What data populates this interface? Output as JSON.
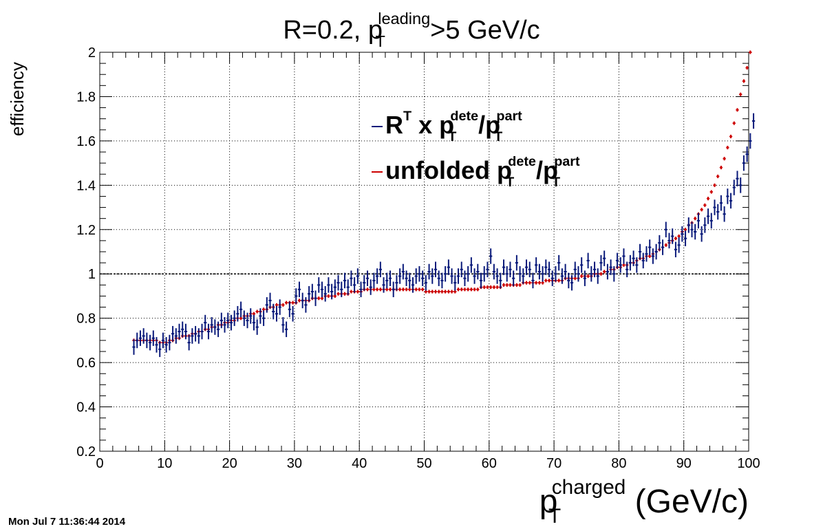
{
  "title": {
    "prefix": "R=0.2, p",
    "sub": "T",
    "sup": "leading",
    "suffix": ">5 GeV/c"
  },
  "legend": [
    {
      "base": "R",
      "sup1": "T",
      "mid": " x p",
      "sup2": "dete",
      "sub2": "T",
      "slash": "/p",
      "sup3": "part",
      "sub3": "T",
      "color": "#0a1a7a"
    },
    {
      "base": "unfolded p",
      "sup2": "dete",
      "sub2": "T",
      "slash": "/p",
      "sup3": "part",
      "sub3": "T",
      "color": "#cc0000"
    }
  ],
  "xlabel": {
    "base": "p",
    "sup": "charged",
    "sub": "T",
    "suffix": " (GeV/c)"
  },
  "ylabel": "efficiency",
  "timestamp": "Mon Jul  7 11:36:44 2014",
  "colors": {
    "series1": "#0a1a7a",
    "series2": "#cc0000",
    "grid": "#000000"
  },
  "chart_data": {
    "type": "scatter",
    "xlim": [
      0,
      100
    ],
    "ylim": [
      0.2,
      2
    ],
    "xticks": [
      0,
      10,
      20,
      30,
      40,
      50,
      60,
      70,
      80,
      90,
      100
    ],
    "yticks": [
      0.2,
      0.4,
      0.6,
      0.8,
      1,
      1.2,
      1.4,
      1.6,
      1.8,
      2
    ],
    "ytick_labels": [
      "0.2",
      "0.4",
      "0.6",
      "0.8",
      "1",
      "1.2",
      "1.4",
      "1.6",
      "1.8",
      "2"
    ],
    "grid": true,
    "reference_line_y": 1,
    "series": [
      {
        "name_key": "R^T x pT dete/pT part",
        "x_start": 5.25,
        "x_step": 0.5,
        "y": [
          0.67,
          0.7,
          0.71,
          0.72,
          0.7,
          0.69,
          0.71,
          0.68,
          0.66,
          0.7,
          0.68,
          0.69,
          0.73,
          0.72,
          0.74,
          0.75,
          0.74,
          0.69,
          0.72,
          0.73,
          0.72,
          0.74,
          0.78,
          0.74,
          0.77,
          0.76,
          0.75,
          0.79,
          0.77,
          0.79,
          0.78,
          0.8,
          0.82,
          0.84,
          0.8,
          0.79,
          0.81,
          0.78,
          0.76,
          0.81,
          0.8,
          0.86,
          0.88,
          0.83,
          0.82,
          0.85,
          0.77,
          0.75,
          0.84,
          0.82,
          0.9,
          0.93,
          0.88,
          0.86,
          0.91,
          0.92,
          0.89,
          0.95,
          0.93,
          0.91,
          0.95,
          0.92,
          0.94,
          0.96,
          0.93,
          0.97,
          0.94,
          0.98,
          0.95,
          0.99,
          0.93,
          0.96,
          0.98,
          0.94,
          0.97,
          0.99,
          1.02,
          0.95,
          0.97,
          0.98,
          0.93,
          0.96,
          0.99,
          1.01,
          0.98,
          0.97,
          0.95,
          0.99,
          1.0,
          0.98,
          0.96,
          1.01,
          0.99,
          1.02,
          0.98,
          0.97,
          1.0,
          1.03,
          0.99,
          0.96,
          0.99,
          1.02,
          0.98,
          1.0,
          1.04,
          0.99,
          1.01,
          0.97,
          1.0,
          1.02,
          1.08,
          1.01,
          0.99,
          0.97,
          1.03,
          1.0,
          1.02,
          0.98,
          1.05,
          1.0,
          0.99,
          1.03,
          1.02,
          0.97,
          1.04,
          1.01,
          1.0,
          1.03,
          1.02,
          0.98,
          1.0,
          1.05,
          0.99,
          1.01,
          0.97,
          0.96,
          1.02,
          1.0,
          1.04,
          0.98,
          1.06,
          1.0,
          1.02,
          0.99,
          1.05,
          1.07,
          1.01,
          1.03,
          1.0,
          1.06,
          1.04,
          1.08,
          1.02,
          1.05,
          1.07,
          1.04,
          1.1,
          1.06,
          1.09,
          1.12,
          1.08,
          1.1,
          1.14,
          1.12,
          1.2,
          1.15,
          1.17,
          1.11,
          1.13,
          1.18,
          1.16,
          1.22,
          1.2,
          1.19,
          1.24,
          1.18,
          1.22,
          1.26,
          1.24,
          1.3,
          1.28,
          1.32,
          1.27,
          1.35,
          1.33,
          1.39,
          1.43,
          1.4,
          1.5,
          1.54,
          1.6,
          1.69
        ],
        "err": 0.035
      },
      {
        "name_key": "unfolded pT dete/pT part",
        "x_start": 5.25,
        "x_step": 0.5,
        "y": [
          0.7,
          0.7,
          0.7,
          0.7,
          0.7,
          0.7,
          0.7,
          0.7,
          0.69,
          0.69,
          0.69,
          0.7,
          0.7,
          0.71,
          0.71,
          0.72,
          0.72,
          0.72,
          0.73,
          0.73,
          0.74,
          0.74,
          0.75,
          0.75,
          0.76,
          0.76,
          0.77,
          0.77,
          0.78,
          0.78,
          0.79,
          0.79,
          0.8,
          0.8,
          0.81,
          0.81,
          0.82,
          0.82,
          0.83,
          0.83,
          0.84,
          0.84,
          0.85,
          0.85,
          0.86,
          0.86,
          0.86,
          0.87,
          0.87,
          0.87,
          0.87,
          0.88,
          0.88,
          0.88,
          0.88,
          0.89,
          0.89,
          0.89,
          0.89,
          0.9,
          0.9,
          0.9,
          0.9,
          0.91,
          0.91,
          0.91,
          0.91,
          0.92,
          0.92,
          0.92,
          0.92,
          0.93,
          0.93,
          0.93,
          0.93,
          0.93,
          0.93,
          0.93,
          0.93,
          0.93,
          0.93,
          0.93,
          0.93,
          0.93,
          0.93,
          0.93,
          0.93,
          0.93,
          0.93,
          0.93,
          0.92,
          0.92,
          0.92,
          0.92,
          0.92,
          0.92,
          0.92,
          0.92,
          0.92,
          0.92,
          0.93,
          0.93,
          0.93,
          0.93,
          0.93,
          0.93,
          0.93,
          0.94,
          0.94,
          0.94,
          0.94,
          0.94,
          0.94,
          0.94,
          0.95,
          0.95,
          0.95,
          0.95,
          0.95,
          0.95,
          0.96,
          0.96,
          0.96,
          0.96,
          0.96,
          0.96,
          0.96,
          0.97,
          0.97,
          0.97,
          0.97,
          0.97,
          0.97,
          0.98,
          0.98,
          0.98,
          0.98,
          0.98,
          0.99,
          0.99,
          0.99,
          0.99,
          1.0,
          1.0,
          1.0,
          1.01,
          1.01,
          1.02,
          1.02,
          1.03,
          1.03,
          1.04,
          1.04,
          1.05,
          1.05,
          1.06,
          1.07,
          1.07,
          1.08,
          1.08,
          1.09,
          1.1,
          1.11,
          1.12,
          1.13,
          1.14,
          1.15,
          1.16,
          1.17,
          1.19,
          1.2,
          1.22,
          1.23,
          1.25,
          1.27,
          1.29,
          1.31,
          1.34,
          1.37,
          1.4,
          1.44,
          1.48,
          1.52,
          1.57,
          1.62,
          1.68,
          1.74,
          1.81,
          1.87,
          1.93,
          2.0
        ],
        "err": 0.008
      }
    ]
  }
}
